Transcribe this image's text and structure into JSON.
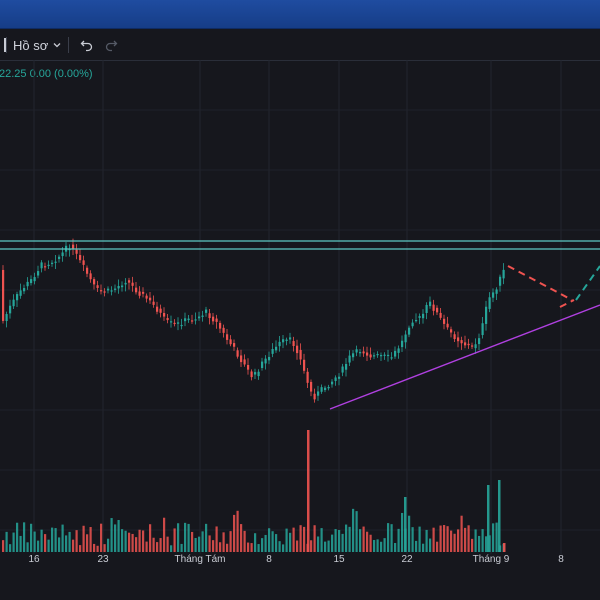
{
  "toolbar": {
    "profile_label": "Hồ sơ",
    "undo_icon": "undo-icon",
    "redo_icon": "redo-icon",
    "dropdown_icon": "chevron-down-icon"
  },
  "quote": {
    "text": "22.25  0.00 (0.00%)"
  },
  "colors": {
    "up": "#26a69a",
    "down": "#ef5350",
    "trendline": "#b040e0",
    "resistance": "#5ec9c4",
    "projection_down": "#ef5350",
    "projection_up": "#26a69a"
  },
  "xaxis": {
    "labels": [
      "16",
      "23",
      "Tháng Tám",
      "8",
      "15",
      "22",
      "Tháng 9",
      "8"
    ]
  }
}
